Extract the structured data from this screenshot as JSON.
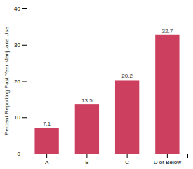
{
  "chart_data": {
    "type": "bar",
    "categories": [
      "A",
      "B",
      "C",
      "D or Below"
    ],
    "values": [
      7.1,
      13.5,
      20.2,
      32.7
    ],
    "color": "#cc3f5e",
    "ylabel": "Percent Reporting Past Year Marijuana Use",
    "ylim": [
      0,
      40
    ],
    "yticks": [
      0,
      10,
      20,
      30,
      40
    ],
    "grid": false,
    "data_labels": true
  }
}
